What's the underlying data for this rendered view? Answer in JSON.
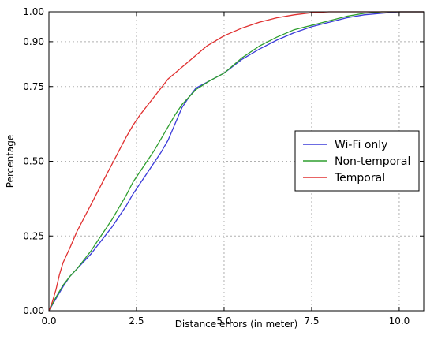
{
  "chart_data": {
    "type": "line",
    "xlabel": "Distance errors (in meter)",
    "ylabel": "Percentage",
    "xlim": [
      0,
      10.7
    ],
    "ylim": [
      0,
      1.0
    ],
    "xticks": [
      0,
      2.5,
      5,
      7.5,
      10
    ],
    "xtick_labels": [
      "0.0",
      "2.5",
      "5.0",
      "7.5",
      "10.0"
    ],
    "yticks": [
      0,
      0.25,
      0.5,
      0.75,
      0.9,
      1.0
    ],
    "ytick_labels": [
      "0.00",
      "0.25",
      "0.50",
      "0.75",
      "0.90",
      "1.00"
    ],
    "grid": true,
    "legend_position": "center-right",
    "series": [
      {
        "name": "Wi-Fi only",
        "color": "#3b3bd9",
        "x": [
          0,
          0.2,
          0.4,
          0.6,
          0.8,
          1.0,
          1.2,
          1.4,
          1.6,
          1.8,
          2.0,
          2.2,
          2.4,
          2.6,
          2.8,
          3.0,
          3.2,
          3.4,
          3.6,
          3.8,
          4.0,
          4.2,
          4.6,
          5.0,
          5.5,
          6.0,
          6.5,
          7.0,
          7.5,
          8.0,
          8.5,
          9.0,
          9.5,
          10.0,
          10.7
        ],
        "y": [
          0,
          0.04,
          0.08,
          0.115,
          0.14,
          0.165,
          0.19,
          0.22,
          0.25,
          0.28,
          0.315,
          0.35,
          0.39,
          0.425,
          0.46,
          0.495,
          0.53,
          0.57,
          0.625,
          0.68,
          0.715,
          0.745,
          0.77,
          0.795,
          0.84,
          0.875,
          0.905,
          0.93,
          0.95,
          0.965,
          0.98,
          0.99,
          0.995,
          1.0,
          1.0
        ]
      },
      {
        "name": "Non-temporal",
        "color": "#2e9e2e",
        "x": [
          0,
          0.2,
          0.4,
          0.6,
          0.8,
          1.0,
          1.2,
          1.4,
          1.6,
          1.8,
          2.0,
          2.2,
          2.4,
          2.6,
          2.8,
          3.0,
          3.2,
          3.4,
          3.6,
          3.8,
          4.0,
          4.2,
          4.6,
          5.0,
          5.5,
          6.0,
          6.5,
          7.0,
          7.5,
          8.0,
          8.5,
          9.0,
          9.5,
          10.0,
          10.7
        ],
        "y": [
          0,
          0.045,
          0.085,
          0.115,
          0.14,
          0.17,
          0.2,
          0.235,
          0.27,
          0.305,
          0.345,
          0.385,
          0.43,
          0.465,
          0.5,
          0.535,
          0.575,
          0.615,
          0.655,
          0.69,
          0.715,
          0.74,
          0.77,
          0.795,
          0.845,
          0.885,
          0.915,
          0.94,
          0.955,
          0.97,
          0.985,
          0.995,
          1.0,
          1.0,
          1.0
        ]
      },
      {
        "name": "Temporal",
        "color": "#e03030",
        "x": [
          0,
          0.1,
          0.2,
          0.3,
          0.4,
          0.6,
          0.8,
          1.0,
          1.2,
          1.4,
          1.6,
          1.8,
          2.0,
          2.2,
          2.4,
          2.6,
          2.8,
          3.0,
          3.2,
          3.4,
          3.7,
          4.0,
          4.5,
          5.0,
          5.5,
          6.0,
          6.5,
          7.0,
          7.5,
          8.0,
          8.5,
          9.0,
          9.5,
          10.0,
          10.7
        ],
        "y": [
          0,
          0.03,
          0.07,
          0.12,
          0.16,
          0.21,
          0.265,
          0.31,
          0.355,
          0.4,
          0.445,
          0.49,
          0.535,
          0.58,
          0.62,
          0.655,
          0.685,
          0.715,
          0.745,
          0.775,
          0.805,
          0.835,
          0.885,
          0.92,
          0.945,
          0.965,
          0.98,
          0.99,
          0.997,
          1.0,
          1.0,
          1.0,
          1.0,
          1.0,
          1.0
        ]
      }
    ]
  }
}
